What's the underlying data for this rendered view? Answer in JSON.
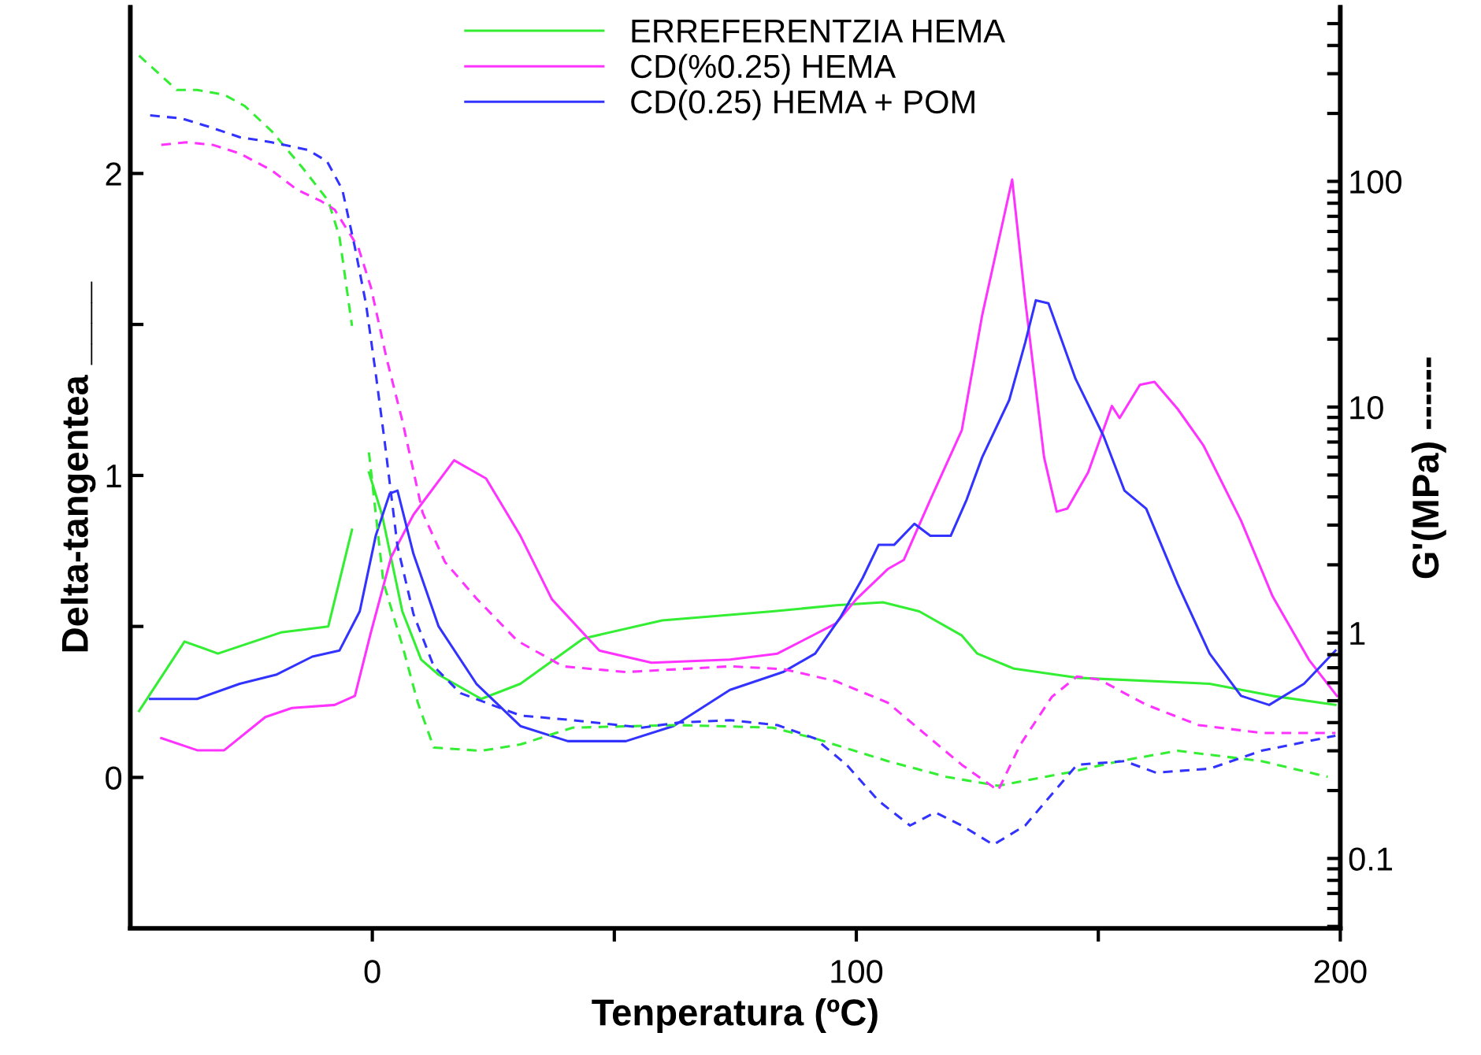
{
  "chart_data": {
    "type": "line",
    "xlabel": "Tenperatura (ºC)",
    "ylabel": "Delta-tangentea ____",
    "y2label": "G'(MPa) ------",
    "xlim": [
      -50,
      200
    ],
    "xticks": [
      0,
      100,
      200,
      {
        "value": 50,
        "label": null
      },
      {
        "value": 150,
        "label": null
      }
    ],
    "ylim": [
      -0.5,
      2.55
    ],
    "yticks": [
      0,
      1,
      2,
      {
        "value": 0.5,
        "label": null
      },
      {
        "value": 1.5,
        "label": null
      }
    ],
    "y2lim": [
      0.049,
      590
    ],
    "log": "y2",
    "y2ticks": [
      0.1,
      1,
      10,
      100,
      {
        "value": 0.05,
        "label": null
      },
      {
        "value": 0.06,
        "label": null
      },
      {
        "value": 0.07,
        "label": null
      },
      {
        "value": 0.08,
        "label": null
      },
      {
        "value": 0.09,
        "label": null
      },
      {
        "value": 0.2,
        "label": null
      },
      {
        "value": 0.3,
        "label": null
      },
      {
        "value": 0.4,
        "label": null
      },
      {
        "value": 0.5,
        "label": null
      },
      {
        "value": 0.6,
        "label": null
      },
      {
        "value": 0.7,
        "label": null
      },
      {
        "value": 0.8,
        "label": null
      },
      {
        "value": 0.9,
        "label": null
      },
      {
        "value": 2,
        "label": null
      },
      {
        "value": 3,
        "label": null
      },
      {
        "value": 4,
        "label": null
      },
      {
        "value": 5,
        "label": null
      },
      {
        "value": 6,
        "label": null
      },
      {
        "value": 7,
        "label": null
      },
      {
        "value": 8,
        "label": null
      },
      {
        "value": 9,
        "label": null
      },
      {
        "value": 20,
        "label": null
      },
      {
        "value": 30,
        "label": null
      },
      {
        "value": 40,
        "label": null
      },
      {
        "value": 50,
        "label": null
      },
      {
        "value": 60,
        "label": null
      },
      {
        "value": 70,
        "label": null
      },
      {
        "value": 80,
        "label": null
      },
      {
        "value": 90,
        "label": null
      },
      {
        "value": 200,
        "label": null
      },
      {
        "value": 300,
        "label": null
      },
      {
        "value": 400,
        "label": null
      },
      {
        "value": 500,
        "label": null
      }
    ],
    "grid": false,
    "legend": "top",
    "marker": "none",
    "series": [
      {
        "name": "ERREFERENTZIA HEMA",
        "color": "#33ee33",
        "line_style": "solid",
        "x": [
          -48.2,
          -38.8,
          -31.9,
          -18.9,
          -9.1,
          -4.2,
          -2.5,
          -0.7,
          2,
          6.2,
          10.1,
          13.7,
          22.5,
          30.6,
          43.6,
          59.9,
          82.7,
          95.8,
          105.5,
          113,
          121.8,
          125,
          132.6,
          145.6,
          173,
          186,
          199
        ],
        "values": [
          0.22,
          0.45,
          0.41,
          0.48,
          0.5,
          0.82,
          null,
          1.01,
          0.87,
          0.55,
          0.39,
          0.34,
          0.26,
          0.31,
          0.46,
          0.52,
          0.55,
          0.57,
          0.58,
          0.55,
          0.47,
          0.41,
          0.36,
          0.33,
          0.31,
          0.27,
          0.24
        ]
      },
      {
        "name": "CD(%0.25) HEMA",
        "color": "#ff33ff",
        "line_style": "solid",
        "x": [
          -43.6,
          -36.2,
          -30.6,
          -22.1,
          -16.6,
          -7.8,
          -3.6,
          -0.3,
          3.9,
          8.5,
          16.9,
          23.5,
          30.6,
          37.1,
          46.9,
          57.7,
          73.9,
          83.7,
          95.8,
          100,
          106.5,
          109.8,
          115.3,
          121.8,
          126,
          132.2,
          134.9,
          138.8,
          141.4,
          143.6,
          147.9,
          152.8,
          154.4,
          158.6,
          161.6,
          166.4,
          171.7,
          179.5,
          186,
          193.5,
          199.3
        ],
        "values": [
          0.13,
          0.09,
          0.09,
          0.2,
          0.23,
          0.24,
          0.27,
          0.48,
          0.73,
          0.87,
          1.05,
          0.99,
          0.8,
          0.59,
          0.42,
          0.38,
          0.39,
          0.41,
          0.51,
          0.59,
          0.69,
          0.72,
          0.92,
          1.15,
          1.53,
          1.98,
          1.58,
          1.06,
          0.88,
          0.89,
          1.01,
          1.23,
          1.19,
          1.3,
          1.31,
          1.22,
          1.1,
          0.85,
          0.6,
          0.39,
          0.27
        ]
      },
      {
        "name": "CD(0.25) HEMA + POM",
        "color": "#3333ff",
        "line_style": "solid",
        "x": [
          -45.9,
          -36.2,
          -27.4,
          -19.9,
          -12.4,
          -6.8,
          -2.6,
          0.7,
          3.6,
          5.2,
          8.5,
          13.7,
          21.5,
          30.6,
          40.4,
          52.4,
          62.2,
          73.9,
          85,
          91.5,
          96.7,
          101.3,
          104.6,
          107.8,
          112,
          115.3,
          119.5,
          122.8,
          126,
          131.6,
          134.9,
          137.1,
          139.7,
          145.3,
          151.1,
          155.4,
          159.9,
          166.4,
          173,
          179.5,
          185.3,
          192.5,
          199
        ],
        "values": [
          0.26,
          0.26,
          0.31,
          0.34,
          0.4,
          0.42,
          0.55,
          0.8,
          0.94,
          0.95,
          0.74,
          0.5,
          0.31,
          0.17,
          0.12,
          0.12,
          0.17,
          0.29,
          0.35,
          0.41,
          0.53,
          0.66,
          0.77,
          0.77,
          0.84,
          0.8,
          0.8,
          0.92,
          1.06,
          1.25,
          1.44,
          1.58,
          1.57,
          1.32,
          1.13,
          0.95,
          0.89,
          0.64,
          0.41,
          0.27,
          0.24,
          0.31,
          0.42
        ]
      },
      {
        "color": "#33ee33",
        "line_style": "dashed",
        "axis": "y2",
        "x": [
          -48.2,
          -40.4,
          -36.2,
          -30.6,
          -26.4,
          -20.8,
          -14.3,
          -9.1,
          -6.8,
          -4.2,
          -2.5,
          -0.7,
          2.3,
          6.2,
          9.4,
          12.7,
          22.5,
          30.6,
          41.4,
          63.2,
          82.7,
          91.5,
          106.5,
          118.6,
          129.3,
          143.6,
          154.4,
          166.4,
          183.7,
          197.4
        ],
        "values": [
          361,
          254,
          254,
          242,
          216,
          167,
          114,
          82,
          57,
          22.9,
          null,
          6.3,
          1.67,
          0.88,
          0.49,
          0.31,
          0.3,
          0.32,
          0.38,
          0.39,
          0.38,
          0.34,
          0.27,
          0.23,
          0.21,
          0.24,
          0.27,
          0.3,
          0.27,
          0.23
        ]
      },
      {
        "color": "#ff33ff",
        "line_style": "dashed",
        "axis": "y2",
        "x": [
          -43.6,
          -38.4,
          -32.9,
          -27.4,
          -20.8,
          -15.6,
          -10.7,
          -7.8,
          -2.9,
          -0.3,
          2.9,
          6.2,
          10.4,
          15,
          21.5,
          30,
          39.4,
          52.4,
          73.9,
          85,
          95.8,
          106.5,
          115.3,
          121.8,
          129.3,
          133.9,
          140.4,
          145.6,
          150.2,
          159.9,
          170.7,
          183.7,
          199
        ],
        "values": [
          145,
          149,
          145,
          133,
          112,
          92,
          82,
          75,
          51,
          34,
          16.6,
          8.7,
          3.4,
          2.06,
          1.42,
          0.92,
          0.71,
          0.67,
          0.71,
          0.69,
          0.61,
          0.49,
          0.34,
          0.26,
          0.2,
          0.32,
          0.52,
          0.64,
          0.62,
          0.48,
          0.39,
          0.36,
          0.36
        ]
      },
      {
        "color": "#3333ff",
        "line_style": "dashed",
        "axis": "y2",
        "x": [
          -45.9,
          -39.4,
          -33.9,
          -27.4,
          -20.8,
          -13.4,
          -9.4,
          -6.2,
          -3.6,
          -1.3,
          0.7,
          2.6,
          5.2,
          8.5,
          12.7,
          18.2,
          30.6,
          41.4,
          55.7,
          63.2,
          73.9,
          83.7,
          91.5,
          98,
          104.6,
          111.1,
          116.3,
          121.8,
          128.3,
          134.9,
          145.6,
          155.4,
          161.9,
          173,
          183.7,
          199
        ],
        "values": [
          196,
          190,
          175,
          157,
          149,
          138,
          123,
          92,
          51,
          28.6,
          14.1,
          6.9,
          2.42,
          1.21,
          0.71,
          0.54,
          0.43,
          0.41,
          0.38,
          0.4,
          0.41,
          0.39,
          0.34,
          0.26,
          0.18,
          0.14,
          0.16,
          0.14,
          0.115,
          0.14,
          0.26,
          0.27,
          0.24,
          0.25,
          0.3,
          0.35
        ]
      }
    ]
  }
}
